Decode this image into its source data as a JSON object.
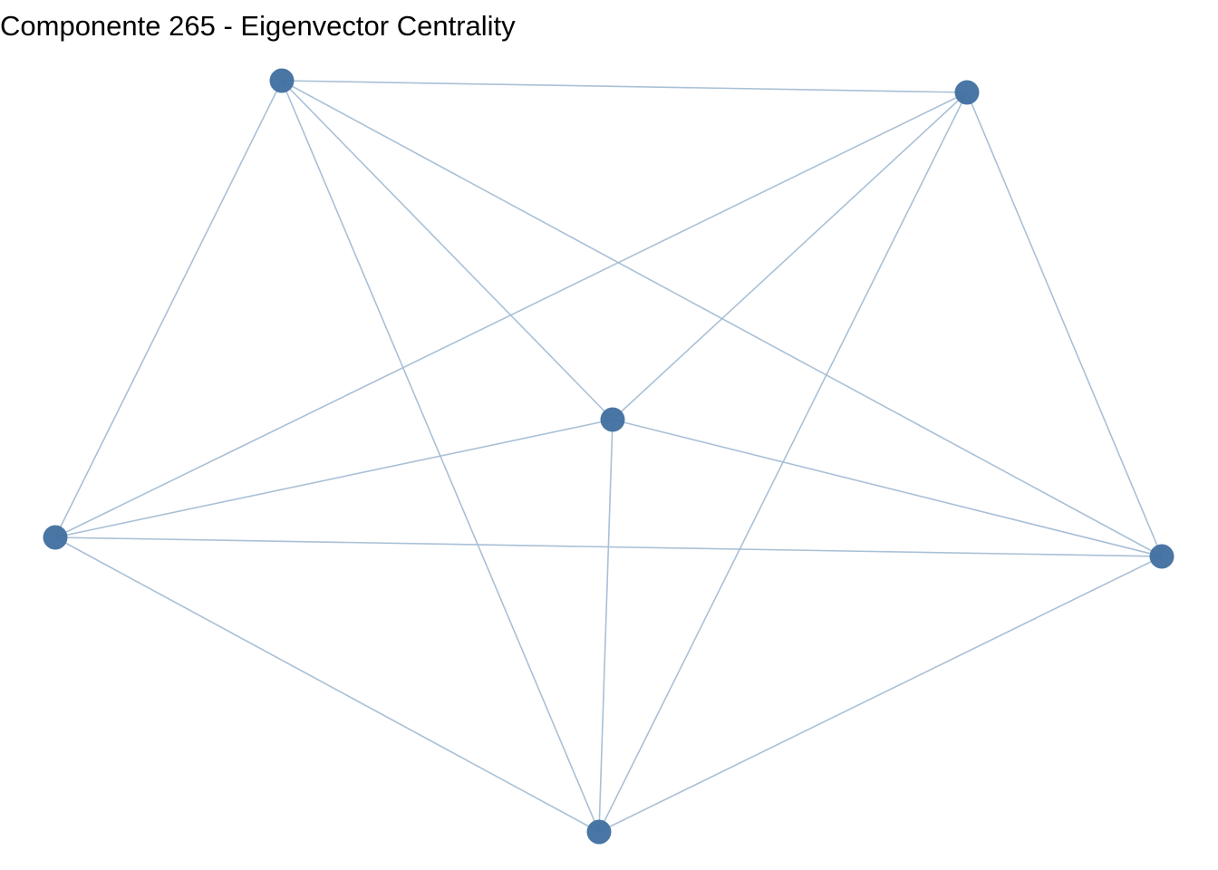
{
  "title": "Componente 265 - Eigenvector Centrality",
  "colors": {
    "node": "#3f6f9f",
    "edge": "#a4bdd4",
    "background": "#ffffff"
  },
  "graph": {
    "nodes": [
      {
        "id": "n1"
      },
      {
        "id": "n2"
      },
      {
        "id": "n3"
      },
      {
        "id": "n4"
      },
      {
        "id": "n5"
      },
      {
        "id": "n6"
      }
    ],
    "edges": [
      [
        "n1",
        "n2"
      ],
      [
        "n1",
        "n3"
      ],
      [
        "n1",
        "n4"
      ],
      [
        "n1",
        "n5"
      ],
      [
        "n1",
        "n6"
      ],
      [
        "n2",
        "n3"
      ],
      [
        "n2",
        "n4"
      ],
      [
        "n2",
        "n5"
      ],
      [
        "n2",
        "n6"
      ],
      [
        "n3",
        "n4"
      ],
      [
        "n3",
        "n5"
      ],
      [
        "n3",
        "n6"
      ],
      [
        "n4",
        "n5"
      ],
      [
        "n4",
        "n6"
      ],
      [
        "n5",
        "n6"
      ]
    ]
  }
}
